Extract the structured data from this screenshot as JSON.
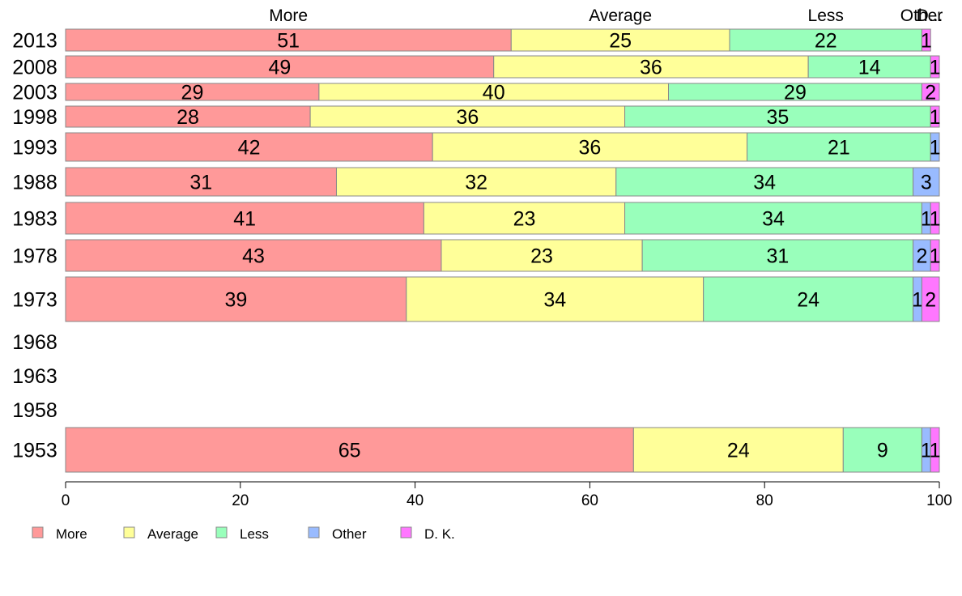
{
  "chart_data": {
    "type": "bar",
    "orientation": "horizontal",
    "stacked": true,
    "categories": [
      "2013",
      "2008",
      "2003",
      "1998",
      "1993",
      "1988",
      "1983",
      "1978",
      "1973",
      "1968",
      "1963",
      "1958",
      "1953"
    ],
    "series": [
      {
        "name": "More",
        "color": "#ff9999",
        "values": [
          51,
          49,
          29,
          28,
          42,
          31,
          41,
          43,
          39,
          null,
          null,
          null,
          65
        ]
      },
      {
        "name": "Average",
        "color": "#ffff99",
        "values": [
          25,
          36,
          40,
          36,
          36,
          32,
          23,
          23,
          34,
          null,
          null,
          null,
          24
        ]
      },
      {
        "name": "Less",
        "color": "#99ffbb",
        "values": [
          22,
          14,
          29,
          35,
          21,
          34,
          34,
          31,
          24,
          null,
          null,
          null,
          9
        ]
      },
      {
        "name": "Other",
        "color": "#99bbff",
        "values": [
          0,
          0,
          0,
          0,
          1,
          3,
          1,
          2,
          1,
          null,
          null,
          null,
          1
        ]
      },
      {
        "name": "D. K.",
        "color": "#ff77ff",
        "values": [
          1,
          1,
          2,
          1,
          0,
          0,
          1,
          1,
          2,
          null,
          null,
          null,
          1
        ]
      }
    ],
    "top_labels": [
      "More",
      "Average",
      "Less",
      "Other",
      "D..."
    ],
    "xlim": [
      0,
      100
    ],
    "xticks": [
      0,
      20,
      40,
      60,
      80,
      100
    ],
    "grid": false,
    "legend_position": "bottom-left"
  }
}
